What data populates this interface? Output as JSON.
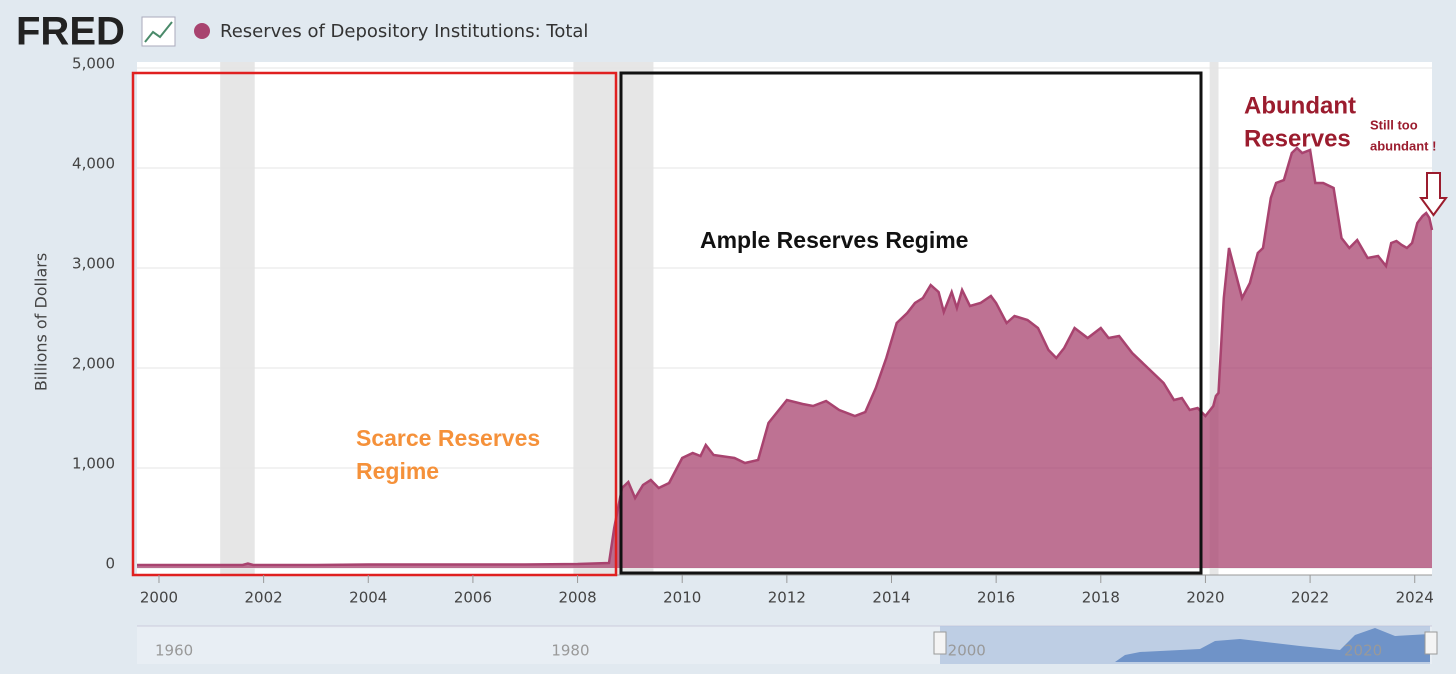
{
  "chart_data": {
    "type": "area",
    "brand": "FRED",
    "series_name": "Reserves of Depository Institutions: Total",
    "y_label": "Billions of Dollars",
    "color": "#a8436f",
    "grid": true,
    "xlim": [
      1999.58,
      2024.33
    ],
    "ylim": [
      0,
      5000
    ],
    "xticks": [
      2000,
      2002,
      2004,
      2006,
      2008,
      2010,
      2012,
      2014,
      2016,
      2018,
      2020,
      2022,
      2024
    ],
    "yticks": [
      0,
      {
        "value": 1000,
        "label": "1,000"
      },
      {
        "value": 2000,
        "label": "2,000"
      },
      {
        "value": 3000,
        "label": "3,000"
      },
      {
        "value": 4000,
        "label": "4,000"
      },
      {
        "value": 5000,
        "label": "5,000"
      }
    ],
    "recessions": [
      [
        2001.17,
        2001.83
      ],
      [
        2007.92,
        2009.45
      ],
      [
        2020.08,
        2020.25
      ]
    ],
    "x": [
      1999.58,
      2000.5,
      2001.6,
      2001.7,
      2001.8,
      2003,
      2004,
      2005,
      2006,
      2007,
      2008,
      2008.6,
      2008.7,
      2008.85,
      2008.97,
      2009.1,
      2009.25,
      2009.4,
      2009.55,
      2009.75,
      2010.0,
      2010.2,
      2010.35,
      2010.45,
      2010.6,
      2011.0,
      2011.2,
      2011.45,
      2011.65,
      2012.0,
      2012.3,
      2012.5,
      2012.75,
      2013.0,
      2013.3,
      2013.5,
      2013.7,
      2013.9,
      2014.1,
      2014.3,
      2014.45,
      2014.6,
      2014.75,
      2014.9,
      2015.0,
      2015.15,
      2015.25,
      2015.35,
      2015.5,
      2015.7,
      2015.9,
      2016.0,
      2016.2,
      2016.35,
      2016.6,
      2016.8,
      2017.0,
      2017.15,
      2017.3,
      2017.5,
      2017.75,
      2018.0,
      2018.15,
      2018.35,
      2018.6,
      2018.9,
      2019.2,
      2019.4,
      2019.55,
      2019.7,
      2019.85,
      2020.0,
      2020.15,
      2020.2,
      2020.25,
      2020.35,
      2020.45,
      2020.55,
      2020.7,
      2020.85,
      2021.0,
      2021.1,
      2021.25,
      2021.35,
      2021.5,
      2021.65,
      2021.75,
      2021.85,
      2022.0,
      2022.1,
      2022.25,
      2022.45,
      2022.6,
      2022.75,
      2022.9,
      2023.1,
      2023.3,
      2023.45,
      2023.55,
      2023.65,
      2023.75,
      2023.85,
      2023.95,
      2024.05,
      2024.15,
      2024.22,
      2024.28,
      2024.33
    ],
    "values": [
      30,
      30,
      30,
      45,
      30,
      30,
      35,
      35,
      35,
      35,
      40,
      50,
      400,
      800,
      860,
      700,
      830,
      880,
      800,
      850,
      1100,
      1150,
      1120,
      1230,
      1130,
      1100,
      1050,
      1080,
      1450,
      1680,
      1640,
      1620,
      1670,
      1580,
      1520,
      1560,
      1800,
      2100,
      2450,
      2550,
      2650,
      2700,
      2830,
      2760,
      2560,
      2760,
      2600,
      2780,
      2620,
      2650,
      2720,
      2650,
      2450,
      2520,
      2480,
      2400,
      2180,
      2100,
      2200,
      2400,
      2300,
      2400,
      2300,
      2320,
      2150,
      2000,
      1850,
      1680,
      1700,
      1580,
      1600,
      1520,
      1620,
      1720,
      1750,
      2700,
      3200,
      3000,
      2700,
      2850,
      3150,
      3200,
      3700,
      3850,
      3880,
      4150,
      4200,
      4150,
      4180,
      3850,
      3850,
      3800,
      3300,
      3200,
      3280,
      3100,
      3120,
      3020,
      3250,
      3270,
      3230,
      3200,
      3250,
      3450,
      3520,
      3550,
      3500,
      3380
    ],
    "annotations": {
      "scarce": [
        "Scarce Reserves",
        "Regime"
      ],
      "ample": "Ample Reserves Regime",
      "abundant": [
        "Abundant",
        "Reserves"
      ],
      "still": [
        "Still too",
        "abundant !"
      ]
    },
    "navigator_xticks": [
      1960,
      1980,
      2000,
      2020
    ]
  }
}
